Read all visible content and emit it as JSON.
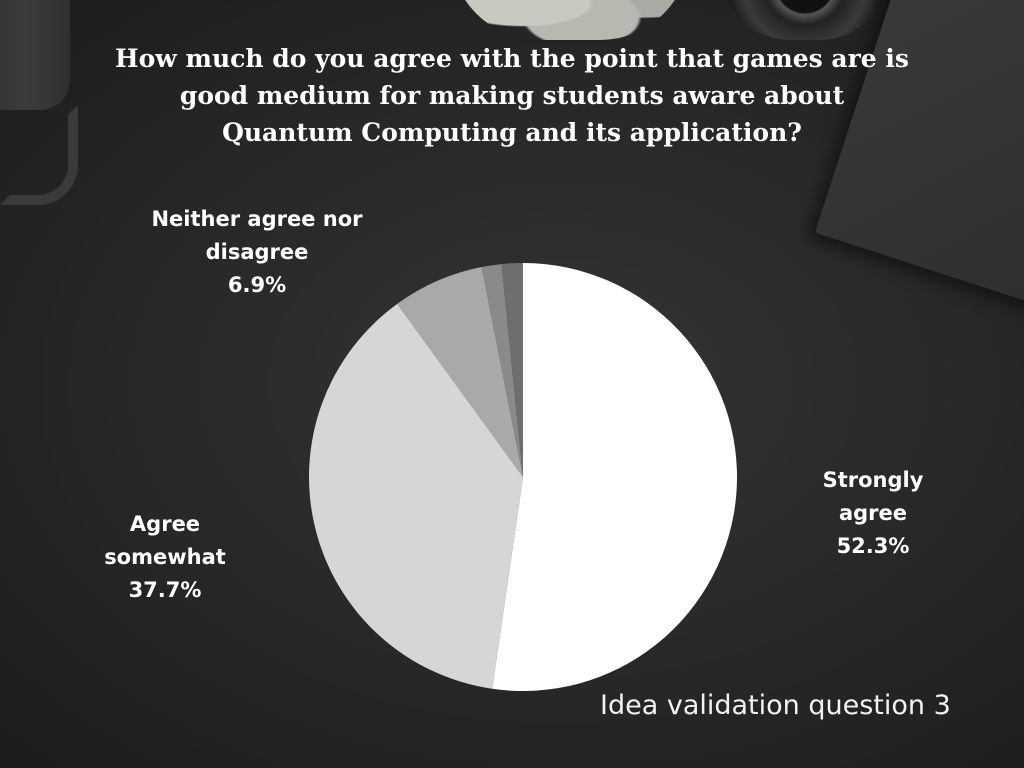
{
  "title": "How much do you agree with the point that games are is good medium for making students aware about Quantum Computing and its application?",
  "footer": "Idea validation question 3",
  "colors": {
    "background": "#2a2a2a",
    "text": "#ffffff",
    "slices": [
      "#ffffff",
      "#d6d6d6",
      "#a9a9a9",
      "#8a8a8a",
      "#6e6e6e"
    ]
  },
  "labels": {
    "strongly_agree": {
      "line1": "Strongly",
      "line2": "agree",
      "pct": "52.3%"
    },
    "agree_somewhat": {
      "line1": "Agree",
      "line2": "somewhat",
      "pct": "37.7%"
    },
    "neither": {
      "line1": "Neither agree nor",
      "line2": "disagree",
      "pct": "6.9%"
    }
  },
  "chart_data": {
    "type": "pie",
    "title": "How much do you agree with the point that games are is good medium for making students aware about Quantum Computing and its application?",
    "categories": [
      "Strongly agree",
      "Agree somewhat",
      "Neither agree nor disagree",
      "",
      ""
    ],
    "values": [
      52.3,
      37.7,
      6.9,
      1.5,
      1.6
    ],
    "start_angle_deg": 0,
    "direction": "clockwise"
  }
}
